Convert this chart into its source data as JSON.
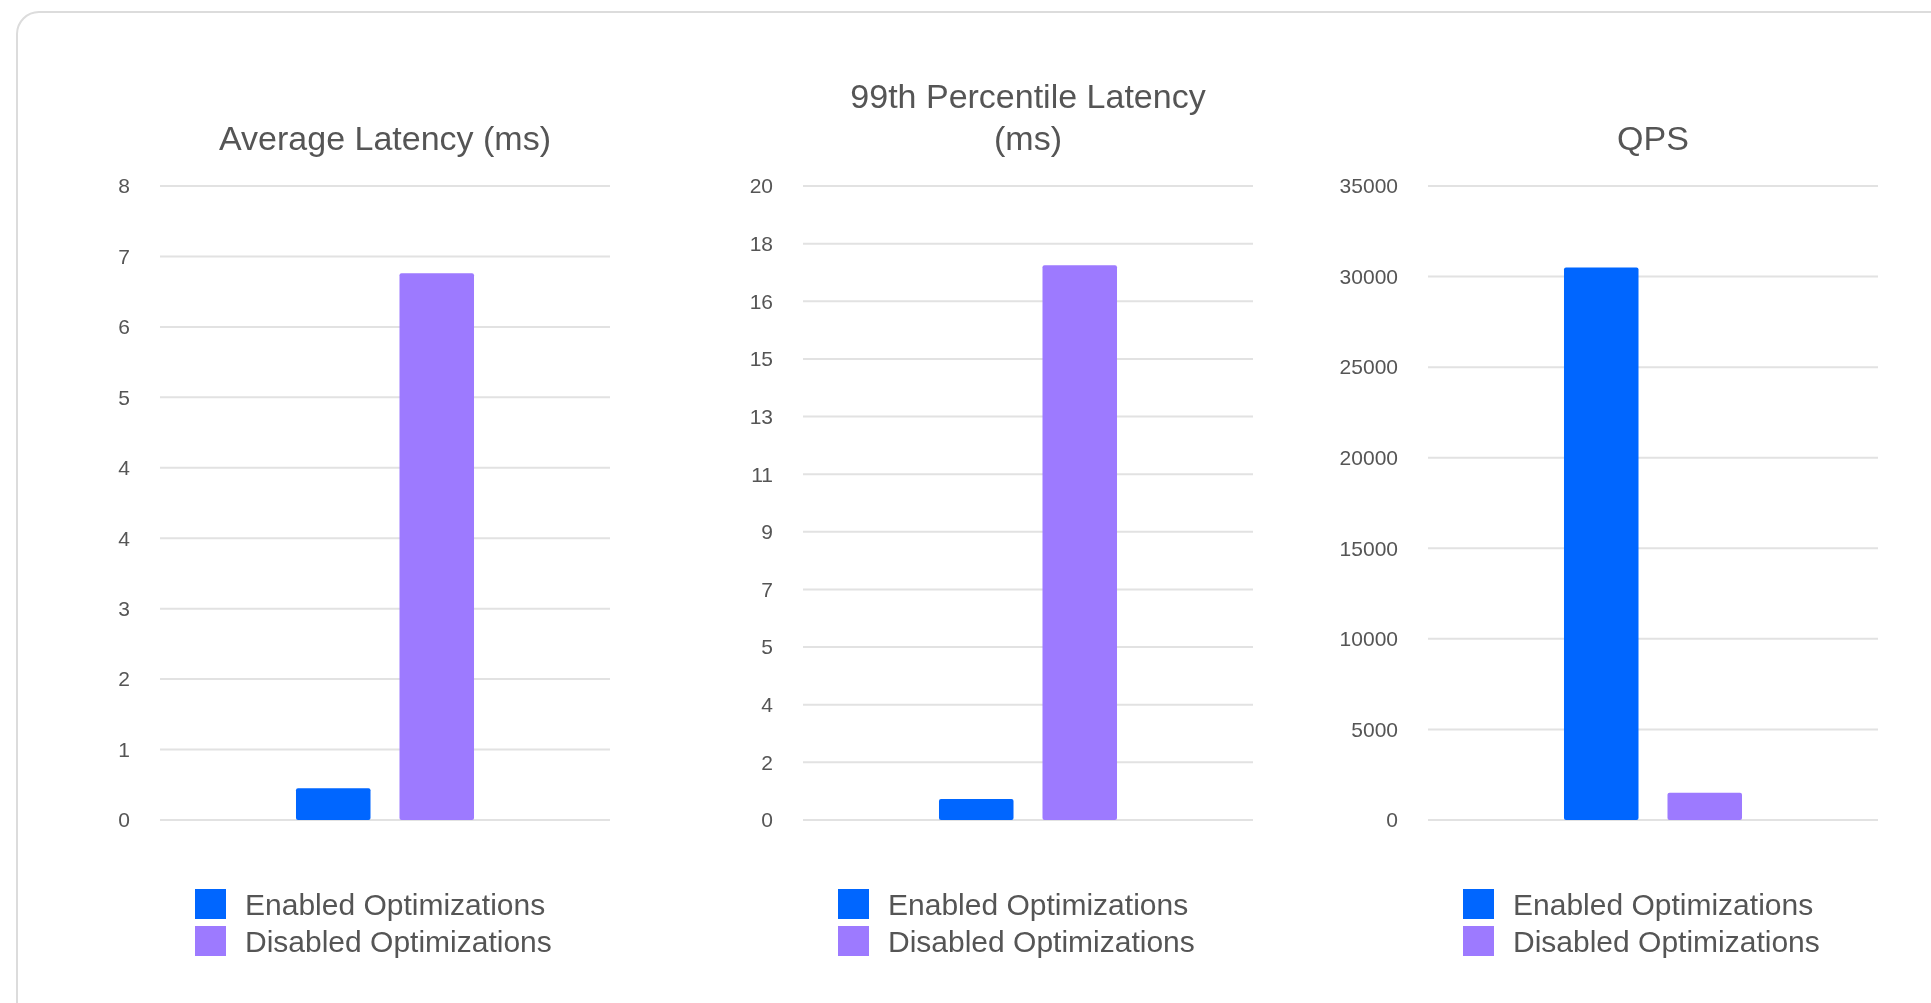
{
  "chart_data": [
    {
      "type": "bar",
      "title": "Average Latency (ms)",
      "categories": [
        null
      ],
      "series": [
        {
          "name": "Enabled Optimizations",
          "color": "#0066ff",
          "values": [
            0.4
          ]
        },
        {
          "name": "Disabled Optimizations",
          "color": "#9d7aff",
          "values": [
            6.9
          ]
        }
      ],
      "ylim": [
        0,
        8
      ],
      "yticks": [
        0,
        {
          "value": 0.889,
          "label": "1"
        },
        {
          "value": 1.778,
          "label": "2"
        },
        {
          "value": 2.667,
          "label": "3"
        },
        {
          "value": 3.556,
          "label": "4"
        },
        {
          "value": 4.444,
          "label": "4"
        },
        {
          "value": 5.333,
          "label": "5"
        },
        {
          "value": 6.222,
          "label": "6"
        },
        {
          "value": 7.111,
          "label": "7"
        },
        8
      ],
      "grid": "y",
      "legend": "bottom"
    },
    {
      "type": "bar",
      "title": "99th Percentile Latency (ms)",
      "categories": [
        null
      ],
      "series": [
        {
          "name": "Enabled Optimizations",
          "color": "#0066ff",
          "values": [
            0.66
          ]
        },
        {
          "name": "Disabled Optimizations",
          "color": "#9d7aff",
          "values": [
            17.5
          ]
        }
      ],
      "ylim": [
        0,
        20
      ],
      "yticks": [
        0,
        {
          "value": 1.818,
          "label": "2"
        },
        {
          "value": 3.636,
          "label": "4"
        },
        {
          "value": 5.455,
          "label": "5"
        },
        {
          "value": 7.273,
          "label": "7"
        },
        {
          "value": 9.091,
          "label": "9"
        },
        {
          "value": 10.909,
          "label": "11"
        },
        {
          "value": 12.727,
          "label": "13"
        },
        {
          "value": 14.545,
          "label": "15"
        },
        {
          "value": 16.364,
          "label": "16"
        },
        {
          "value": 18.182,
          "label": "18"
        },
        20
      ],
      "grid": "y",
      "legend": "bottom"
    },
    {
      "type": "bar",
      "title": "QPS",
      "categories": [
        null
      ],
      "series": [
        {
          "name": "Enabled Optimizations",
          "color": "#0066ff",
          "values": [
            30500
          ]
        },
        {
          "name": "Disabled Optimizations",
          "color": "#9d7aff",
          "values": [
            1500
          ]
        }
      ],
      "ylim": [
        0,
        35000
      ],
      "yticks": [
        0,
        5000,
        10000,
        15000,
        20000,
        25000,
        30000,
        35000
      ],
      "grid": "y",
      "legend": "bottom"
    }
  ]
}
